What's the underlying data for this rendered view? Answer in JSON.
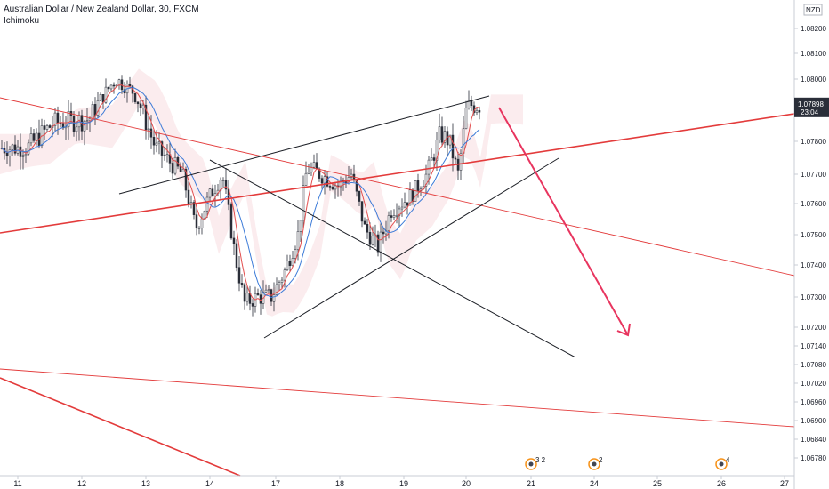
{
  "legend": {
    "title": "Australian Dollar / New Zealand Dollar, 30, FXCM",
    "indicator": "Ichimoku"
  },
  "colors": {
    "candle": "#2a2e39",
    "drawing_black": "#1c1f26",
    "drawing_red": "#e33b3b",
    "arrow": "#e8355f",
    "tenkan": "#e34f4f",
    "kijun": "#3c7bd8",
    "cloud_bull": "#e9d7f2",
    "cloud_bear": "#f8dde0",
    "price_badge": "#2a2e39"
  },
  "chart_data": {
    "type": "candlestick",
    "currency": "NZD",
    "ylim": [
      1.0672,
      1.0822
    ],
    "y_ticks": [
      "1.08200",
      "1.08100",
      "1.08000",
      "1.07898",
      "1.07800",
      "1.07700",
      "1.07600",
      "1.07500",
      "1.07400",
      "1.07300",
      "1.07200",
      "1.07140",
      "1.07080",
      "1.07020",
      "1.06960",
      "1.06900",
      "1.06840",
      "1.06780"
    ],
    "x_ticks": [
      "11",
      "12",
      "13",
      "14",
      "17",
      "18",
      "19",
      "20",
      "21",
      "24",
      "25",
      "26",
      "27"
    ],
    "last_price": "1.07898",
    "countdown": "23:04",
    "event_markers": [
      {
        "label": "3 2",
        "x_label": "21"
      },
      {
        "label": "2",
        "x_label": "24"
      },
      {
        "label": "4",
        "x_label": "26"
      }
    ]
  }
}
